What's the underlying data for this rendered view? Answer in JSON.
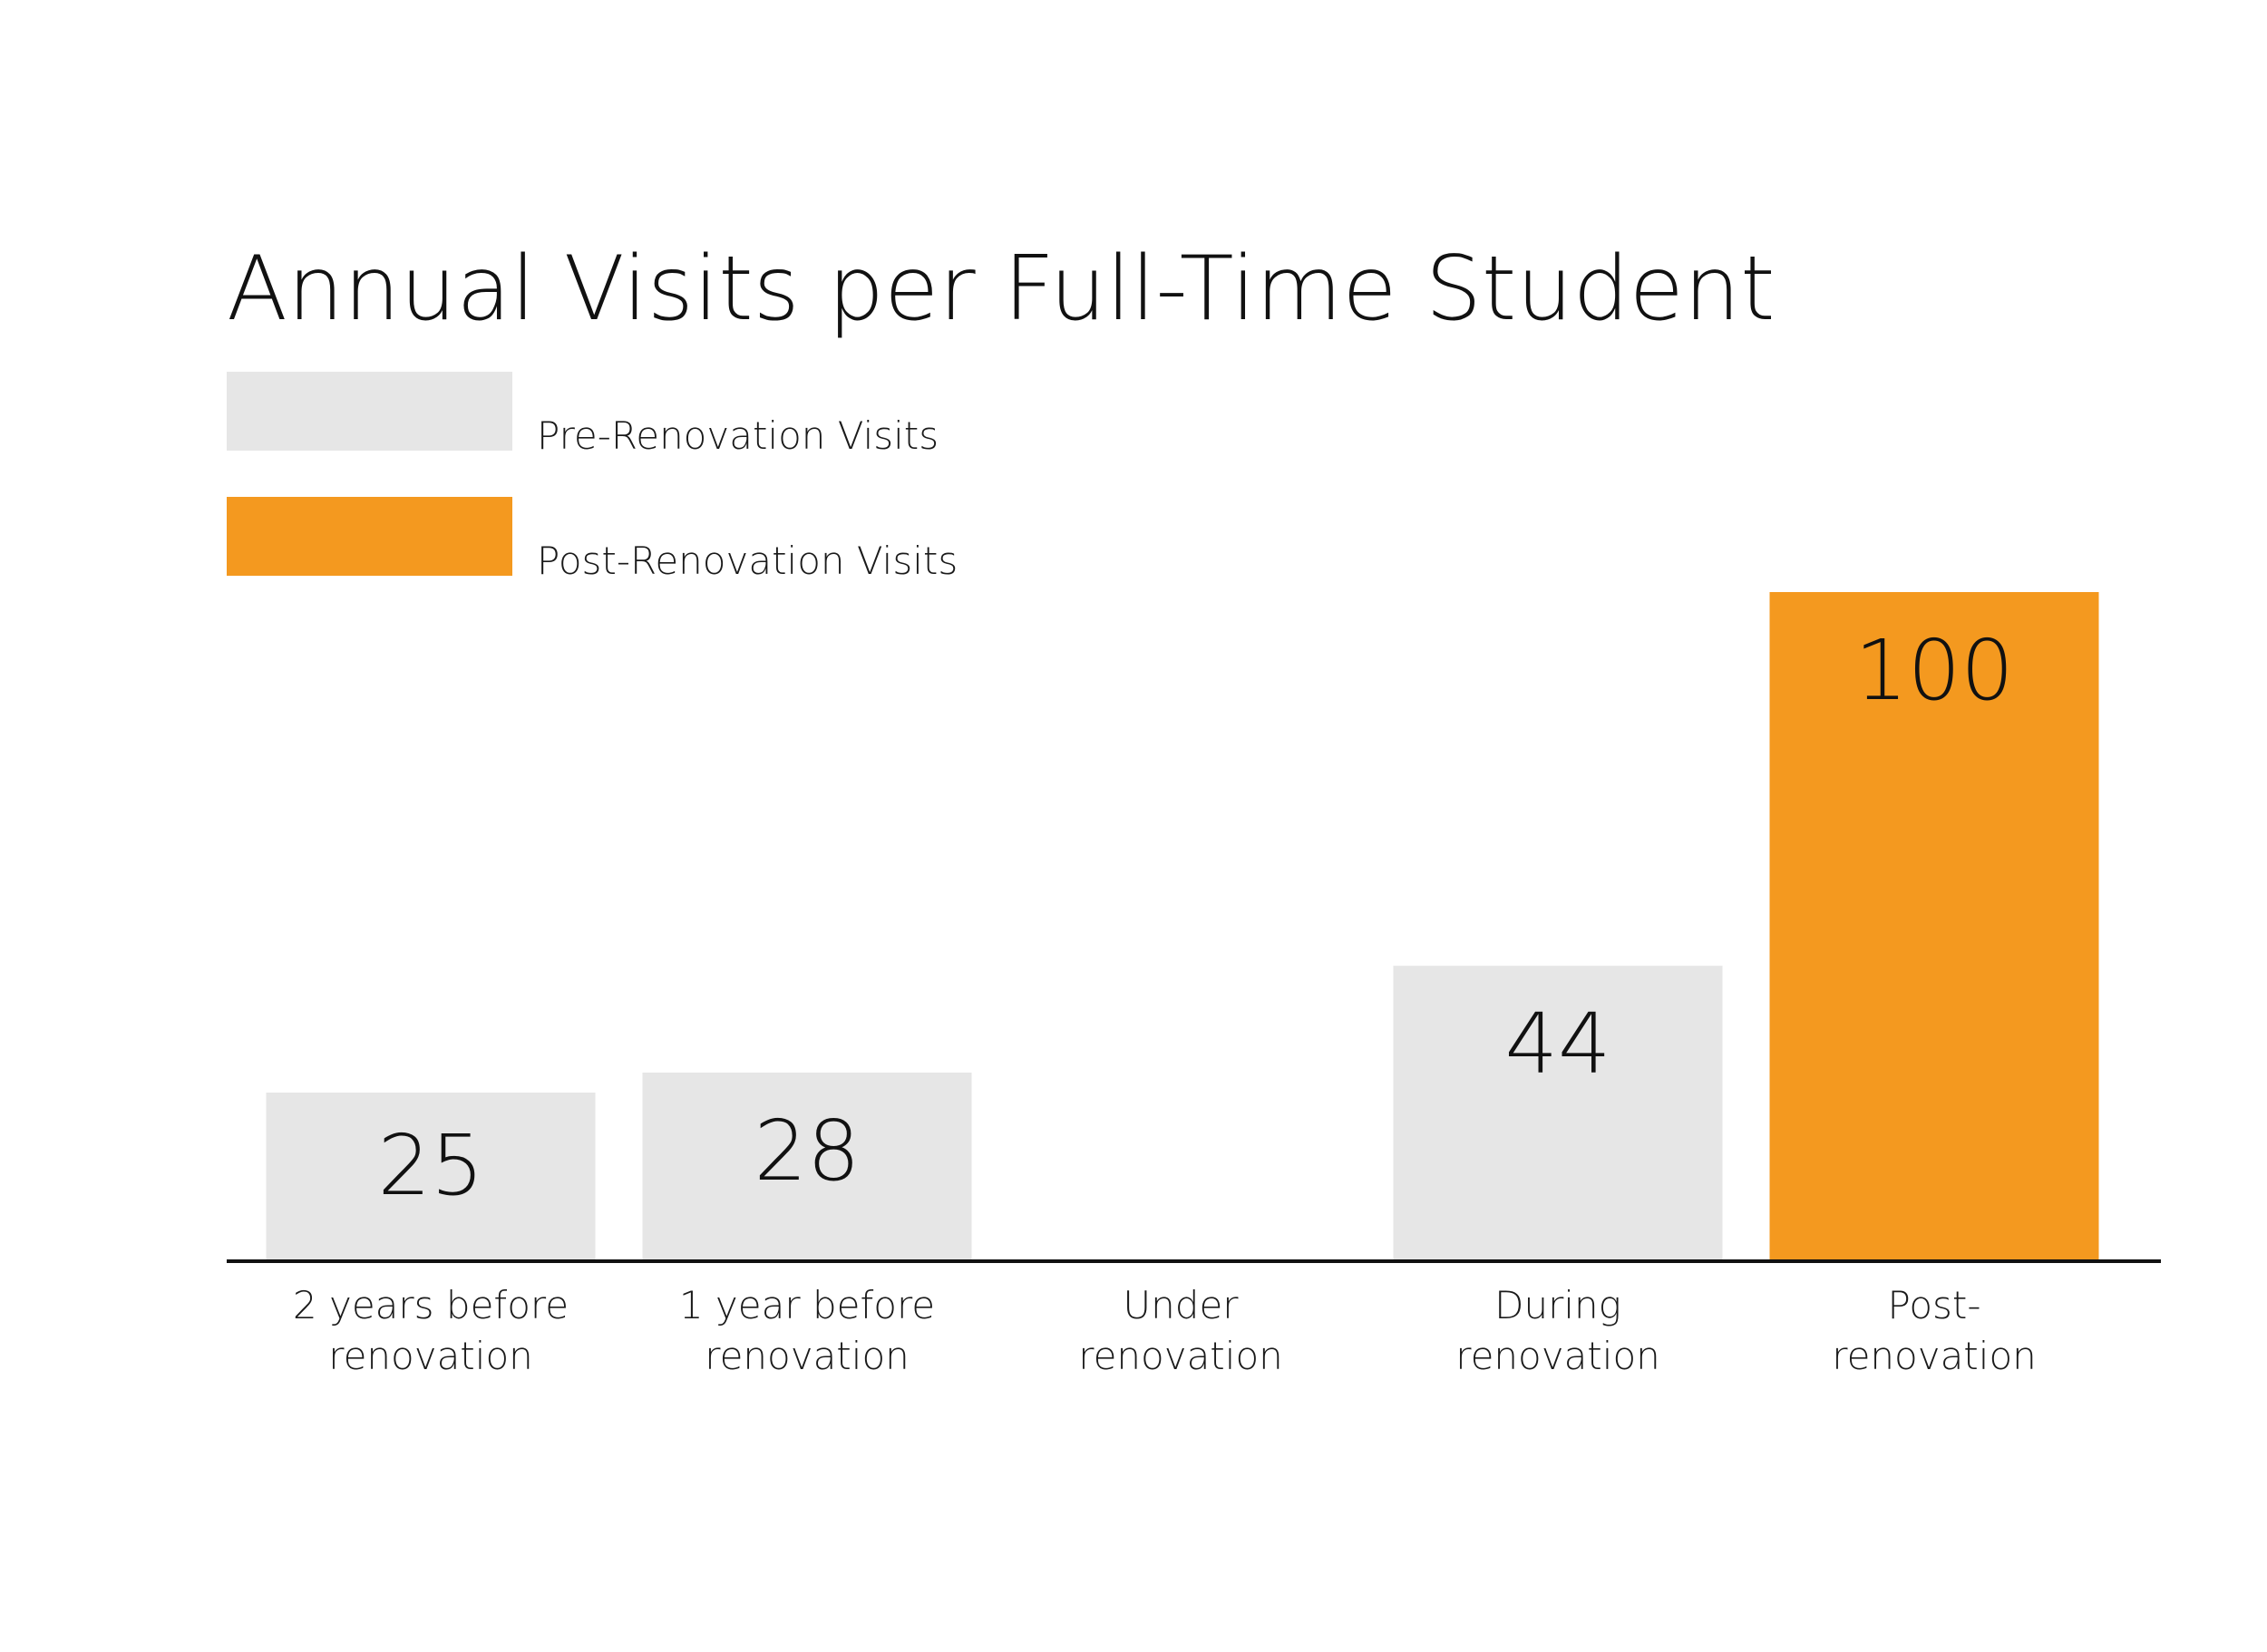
{
  "chart_data": {
    "type": "bar",
    "title": "Annual Visits per Full-Time Student",
    "categories": [
      [
        "2 years before",
        "renovation"
      ],
      [
        "1 year before",
        "renovation"
      ],
      [
        "Under",
        "renovation"
      ],
      [
        "During",
        "renovation"
      ],
      [
        "Post-",
        "renovation"
      ]
    ],
    "series": [
      {
        "name": "Pre-Renovation Visits",
        "color": "#e6e6e6",
        "values": [
          25,
          28,
          null,
          44,
          null
        ]
      },
      {
        "name": "Post-Renovation Visits",
        "color": "#f4991f",
        "values": [
          null,
          null,
          null,
          null,
          100
        ]
      }
    ],
    "data_labels": [
      "25",
      "28",
      "",
      "44",
      "100"
    ],
    "xlabel": "",
    "ylabel": "",
    "ylim": [
      0,
      100
    ],
    "grid": false,
    "legend_position": "top-left"
  }
}
